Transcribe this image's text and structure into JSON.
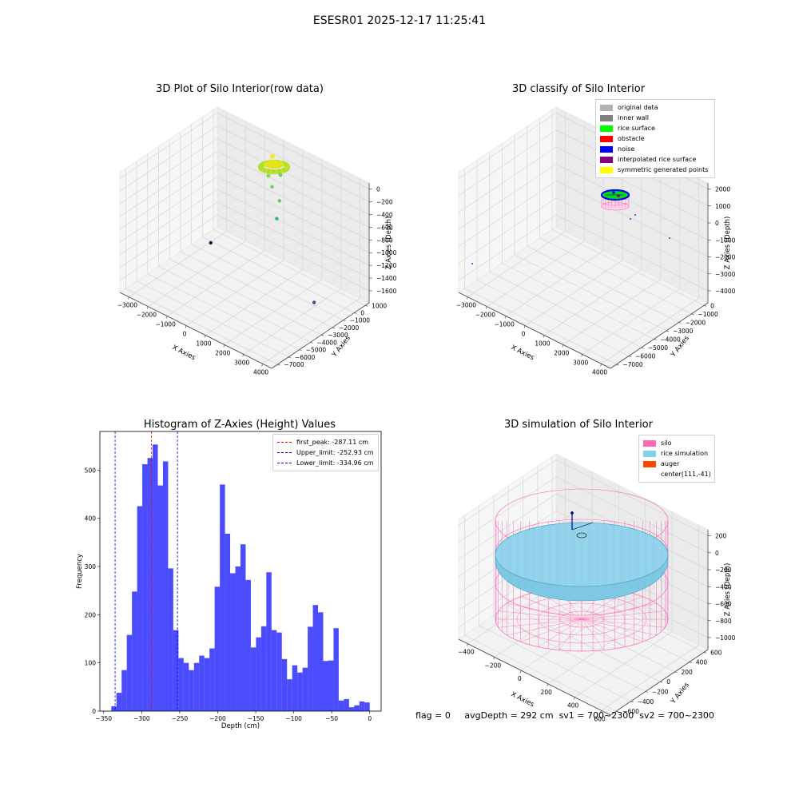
{
  "suptitle": "ESESR01 2025-12-17 11:25:41",
  "footer": {
    "flag": "flag = 0",
    "avg": "avgDepth = 292 cm",
    "sv1": "sv1 = 700~2300",
    "sv2": "sv2 = 700~2300"
  },
  "chart_data": [
    {
      "type": "scatter",
      "title": "3D Plot of Silo Interior(row data)",
      "xlabel": "X Axies",
      "ylabel": "Y Axies",
      "zlabel": "Z Axies (Depth)",
      "x_ticks": [
        "−3000",
        "−2000",
        "−1000",
        "0",
        "1000",
        "2000",
        "3000",
        "4000"
      ],
      "y_ticks": [
        "1000",
        "0",
        "−1000",
        "−2000",
        "−3000",
        "−4000",
        "−5000",
        "−6000",
        "−7000"
      ],
      "z_ticks": [
        "0",
        "−200",
        "−400",
        "−600",
        "−800",
        "−1000",
        "−1200",
        "−1400",
        "−1600"
      ],
      "xlim": [
        -3500,
        4000
      ],
      "ylim": [
        -7500,
        1000
      ],
      "zlim": [
        -1700,
        100
      ],
      "colormap": "viridis",
      "notes_points": [
        {
          "x": 100,
          "y": -300,
          "z": -150,
          "color": "#b5de2b",
          "cluster": true
        },
        {
          "x": 200,
          "y": -400,
          "z": -330,
          "color": "#6ece58"
        },
        {
          "x": 500,
          "y": -200,
          "z": -520,
          "color": "#5ec962"
        },
        {
          "x": 700,
          "y": -800,
          "z": -700,
          "color": "#35b779"
        },
        {
          "x": 3200,
          "y": -1500,
          "z": -1550,
          "color": "#3b528b"
        },
        {
          "x": -3300,
          "y": -300,
          "z": -1650,
          "color": "#440154"
        }
      ]
    },
    {
      "type": "scatter",
      "title": "3D classify of Silo Interior",
      "xlabel": "X Axies",
      "ylabel": "Y Axies",
      "zlabel": "Z Axies (Depth)",
      "x_ticks": [
        "−3000",
        "−2000",
        "−1000",
        "0",
        "1000",
        "2000",
        "3000",
        "4000"
      ],
      "y_ticks": [
        "0",
        "−1000",
        "−2000",
        "−3000",
        "−4000",
        "−5000",
        "−6000",
        "−7000"
      ],
      "z_ticks": [
        "2000",
        "1000",
        "0",
        "−1000",
        "−2000",
        "−3000",
        "−4000"
      ],
      "legend": [
        {
          "label": "original data",
          "color": "#b2b2b2"
        },
        {
          "label": "inner wall",
          "color": "#808080"
        },
        {
          "label": "rice surface",
          "color": "#00ff00"
        },
        {
          "label": "obstacle",
          "color": "#ff0000"
        },
        {
          "label": "noise",
          "color": "#0000ff"
        },
        {
          "label": "interpolated rice surface",
          "color": "#800080"
        },
        {
          "label": "symmetric generated points",
          "color": "#ffff00"
        }
      ]
    },
    {
      "type": "bar",
      "title": "Histogram of Z-Axies (Height) Values",
      "xlabel": "Depth (cm)",
      "ylabel": "Frequency",
      "xlim": [
        -355,
        15
      ],
      "ylim": [
        0,
        580
      ],
      "x_ticks": [
        -350,
        -300,
        -250,
        -200,
        -150,
        -100,
        -50,
        0
      ],
      "y_ticks": [
        0,
        100,
        200,
        300,
        400,
        500
      ],
      "bin_start": -340,
      "bin_width": 6.8,
      "values": [
        10,
        38,
        85,
        158,
        248,
        425,
        512,
        525,
        553,
        468,
        518,
        296,
        168,
        110,
        100,
        85,
        100,
        115,
        110,
        130,
        258,
        470,
        368,
        286,
        300,
        346,
        272,
        132,
        153,
        176,
        288,
        168,
        163,
        108,
        66,
        95,
        80,
        90,
        175,
        220,
        205,
        104,
        105,
        172,
        22,
        25,
        8,
        12,
        20,
        18
      ],
      "color": "#0000ff",
      "vlines": [
        {
          "label": "first_peak: -287.11 cm",
          "x": -287.11,
          "color": "#ff0000"
        },
        {
          "label": "Upper_limit: -252.93 cm",
          "x": -252.93,
          "color": "#0000ff"
        },
        {
          "label": "Lower_limit: -334.96 cm",
          "x": -334.96,
          "color": "#0000ff"
        }
      ]
    },
    {
      "type": "other",
      "title": "3D simulation of Silo Interior",
      "xlabel": "X Axies",
      "ylabel": "Y Axies",
      "zlabel": "Z Axies (Depth)",
      "x_ticks": [
        "−400",
        "−200",
        "0",
        "200",
        "400",
        "600"
      ],
      "y_ticks": [
        "600",
        "400",
        "200",
        "0",
        "−200",
        "−400",
        "−600"
      ],
      "z_ticks": [
        "200",
        "0",
        "−200",
        "−400",
        "−600",
        "−800",
        "−1000"
      ],
      "legend": [
        {
          "label": "silo",
          "color": "#ff69b4"
        },
        {
          "label": "rice simulation",
          "color": "#87ceeb"
        },
        {
          "label": "auger",
          "color": "#ff4500"
        },
        {
          "label": "center(111,-41)",
          "color": ""
        }
      ]
    }
  ]
}
